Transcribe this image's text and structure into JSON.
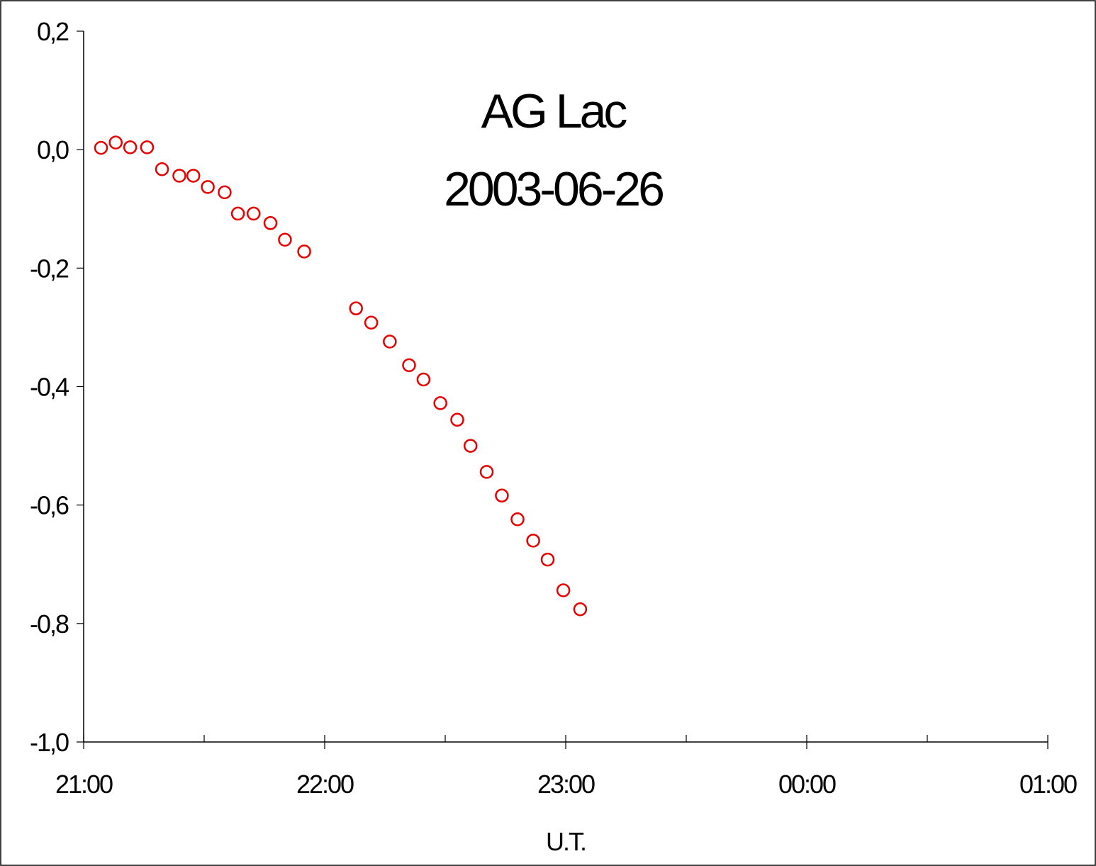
{
  "chart_data": {
    "type": "scatter",
    "title": "AG Lac",
    "subtitle": "2003-06-26",
    "xlabel": "U.T.",
    "ylabel": "",
    "x_unit": "time (hours, U.T.)",
    "xlim": [
      21.0,
      25.0
    ],
    "ylim": [
      -1.0,
      0.2
    ],
    "x_ticks": [
      {
        "value": 21.0,
        "label": "21:00"
      },
      {
        "value": 22.0,
        "label": "22:00"
      },
      {
        "value": 23.0,
        "label": "23:00"
      },
      {
        "value": 24.0,
        "label": "00:00"
      },
      {
        "value": 25.0,
        "label": "01:00"
      }
    ],
    "x_minor_ticks": [
      21.5,
      22.5,
      23.5,
      24.5
    ],
    "y_ticks": [
      {
        "value": 0.2,
        "label": "0,2"
      },
      {
        "value": 0.0,
        "label": "0,0"
      },
      {
        "value": -0.2,
        "label": "-0,2"
      },
      {
        "value": -0.4,
        "label": "-0,4"
      },
      {
        "value": -0.6,
        "label": "-0,6"
      },
      {
        "value": -0.8,
        "label": "-0,8"
      },
      {
        "value": -1.0,
        "label": "-1,0"
      }
    ],
    "grid": false,
    "legend": "none",
    "series": [
      {
        "color": "#e60000",
        "marker": "open-circle",
        "points": [
          {
            "x": 21.072,
            "y": 0.003
          },
          {
            "x": 21.133,
            "y": 0.012
          },
          {
            "x": 21.193,
            "y": 0.004
          },
          {
            "x": 21.263,
            "y": 0.004
          },
          {
            "x": 21.325,
            "y": -0.033
          },
          {
            "x": 21.397,
            "y": -0.044
          },
          {
            "x": 21.455,
            "y": -0.044
          },
          {
            "x": 21.515,
            "y": -0.063
          },
          {
            "x": 21.585,
            "y": -0.072
          },
          {
            "x": 21.64,
            "y": -0.108
          },
          {
            "x": 21.705,
            "y": -0.108
          },
          {
            "x": 21.775,
            "y": -0.124
          },
          {
            "x": 21.835,
            "y": -0.152
          },
          {
            "x": 21.915,
            "y": -0.172
          },
          {
            "x": 22.13,
            "y": -0.268
          },
          {
            "x": 22.193,
            "y": -0.292
          },
          {
            "x": 22.27,
            "y": -0.324
          },
          {
            "x": 22.35,
            "y": -0.364
          },
          {
            "x": 22.41,
            "y": -0.388
          },
          {
            "x": 22.48,
            "y": -0.428
          },
          {
            "x": 22.55,
            "y": -0.456
          },
          {
            "x": 22.605,
            "y": -0.5
          },
          {
            "x": 22.672,
            "y": -0.544
          },
          {
            "x": 22.735,
            "y": -0.584
          },
          {
            "x": 22.8,
            "y": -0.624
          },
          {
            "x": 22.865,
            "y": -0.66
          },
          {
            "x": 22.925,
            "y": -0.692
          },
          {
            "x": 22.99,
            "y": -0.744
          },
          {
            "x": 23.06,
            "y": -0.776
          }
        ]
      }
    ]
  }
}
